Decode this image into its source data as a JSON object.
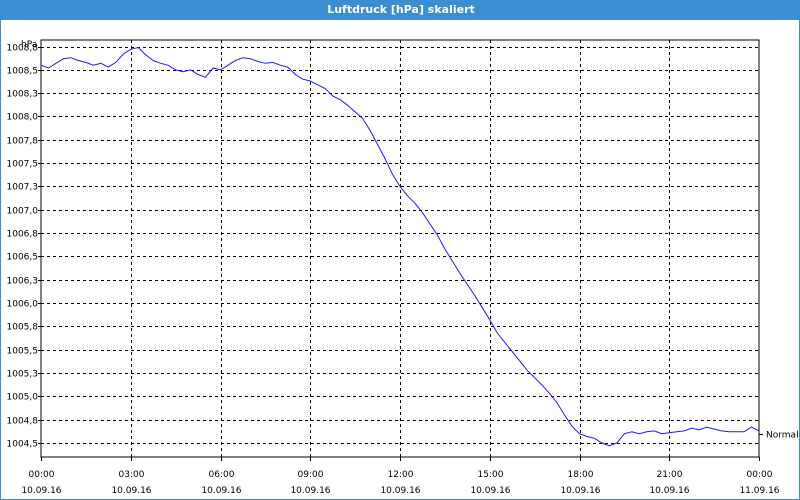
{
  "window": {
    "title": "Luftdruck [hPa] skaliert"
  },
  "colors": {
    "titlebar": "#3b8fd0",
    "series": "#1a1aff",
    "grid": "#000000"
  },
  "chart_data": {
    "type": "line",
    "title": "Luftdruck [hPa] skaliert",
    "ylabel": "hPa",
    "xlabel": "",
    "ylim": [
      1004.35,
      1008.82
    ],
    "xlim": [
      0,
      24
    ],
    "grid": true,
    "y_ticks": [
      {
        "value": 1004.5,
        "label": "1004,5"
      },
      {
        "value": 1004.75,
        "label": "1004,8"
      },
      {
        "value": 1005.0,
        "label": "1005,0"
      },
      {
        "value": 1005.25,
        "label": "1005,3"
      },
      {
        "value": 1005.5,
        "label": "1005,5"
      },
      {
        "value": 1005.75,
        "label": "1005,8"
      },
      {
        "value": 1006.0,
        "label": "1006,0"
      },
      {
        "value": 1006.25,
        "label": "1006,3"
      },
      {
        "value": 1006.5,
        "label": "1006,5"
      },
      {
        "value": 1006.75,
        "label": "1006,8"
      },
      {
        "value": 1007.0,
        "label": "1007,0"
      },
      {
        "value": 1007.25,
        "label": "1007,3"
      },
      {
        "value": 1007.5,
        "label": "1007,5"
      },
      {
        "value": 1007.75,
        "label": "1007,8"
      },
      {
        "value": 1008.0,
        "label": "1008,0"
      },
      {
        "value": 1008.25,
        "label": "1008,3"
      },
      {
        "value": 1008.5,
        "label": "1008,5"
      },
      {
        "value": 1008.75,
        "label": "1008,8"
      }
    ],
    "x_ticks": [
      {
        "value": 0,
        "time": "00:00",
        "date": "10.09.16"
      },
      {
        "value": 3,
        "time": "03:00",
        "date": "10.09.16"
      },
      {
        "value": 6,
        "time": "06:00",
        "date": "10.09.16"
      },
      {
        "value": 9,
        "time": "09:00",
        "date": "10.09.16"
      },
      {
        "value": 12,
        "time": "12:00",
        "date": "10.09.16"
      },
      {
        "value": 15,
        "time": "15:00",
        "date": "10.09.16"
      },
      {
        "value": 18,
        "time": "18:00",
        "date": "10.09.16"
      },
      {
        "value": 21,
        "time": "21:00",
        "date": "10.09.16"
      },
      {
        "value": 24,
        "time": "00:00",
        "date": "11.09.16"
      }
    ],
    "annotation": {
      "label": "Normal",
      "value": 1004.6
    },
    "series": [
      {
        "x": [
          0,
          0.25,
          0.5,
          0.75,
          1,
          1.25,
          1.5,
          1.75,
          2,
          2.25,
          2.5,
          2.75,
          3,
          3.25,
          3.5,
          3.75,
          4,
          4.25,
          4.5,
          4.75,
          5,
          5.25,
          5.5,
          5.75,
          6,
          6.25,
          6.5,
          6.75,
          7,
          7.25,
          7.5,
          7.75,
          8,
          8.25,
          8.5,
          8.75,
          9,
          9.25,
          9.5,
          9.75,
          10,
          10.25,
          10.5,
          10.75,
          11,
          11.25,
          11.5,
          11.75,
          12,
          12.25,
          12.5,
          12.75,
          13,
          13.25,
          13.5,
          13.75,
          14,
          14.25,
          14.5,
          14.75,
          15,
          15.25,
          15.5,
          15.75,
          16,
          16.25,
          16.5,
          16.75,
          17,
          17.25,
          17.5,
          17.75,
          18,
          18.25,
          18.5,
          18.75,
          19,
          19.25,
          19.5,
          19.75,
          20,
          20.25,
          20.5,
          20.75,
          21,
          21.25,
          21.5,
          21.75,
          22,
          22.25,
          22.5,
          22.75,
          23,
          23.25,
          23.5,
          23.75,
          24
        ],
        "values": [
          1008.55,
          1008.52,
          1008.57,
          1008.62,
          1008.63,
          1008.6,
          1008.58,
          1008.55,
          1008.57,
          1008.53,
          1008.58,
          1008.67,
          1008.72,
          1008.74,
          1008.66,
          1008.6,
          1008.57,
          1008.55,
          1008.5,
          1008.48,
          1008.5,
          1008.45,
          1008.42,
          1008.52,
          1008.5,
          1008.55,
          1008.6,
          1008.63,
          1008.62,
          1008.59,
          1008.57,
          1008.58,
          1008.55,
          1008.53,
          1008.45,
          1008.4,
          1008.38,
          1008.34,
          1008.3,
          1008.22,
          1008.18,
          1008.12,
          1008.05,
          1007.98,
          1007.85,
          1007.7,
          1007.55,
          1007.38,
          1007.25,
          1007.15,
          1007.07,
          1006.97,
          1006.85,
          1006.73,
          1006.58,
          1006.45,
          1006.32,
          1006.2,
          1006.08,
          1005.95,
          1005.82,
          1005.68,
          1005.58,
          1005.48,
          1005.38,
          1005.28,
          1005.2,
          1005.12,
          1005.03,
          1004.93,
          1004.8,
          1004.68,
          1004.6,
          1004.57,
          1004.55,
          1004.5,
          1004.47,
          1004.5,
          1004.6,
          1004.62,
          1004.6,
          1004.62,
          1004.63,
          1004.6,
          1004.61,
          1004.62,
          1004.63,
          1004.66,
          1004.64,
          1004.67,
          1004.65,
          1004.63,
          1004.62,
          1004.62,
          1004.62,
          1004.67,
          1004.63
        ]
      }
    ]
  }
}
